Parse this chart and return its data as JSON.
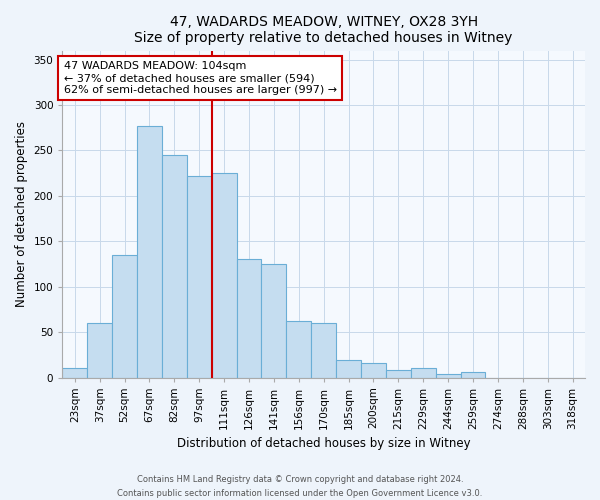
{
  "title": "47, WADARDS MEADOW, WITNEY, OX28 3YH",
  "subtitle": "Size of property relative to detached houses in Witney",
  "xlabel": "Distribution of detached houses by size in Witney",
  "ylabel": "Number of detached properties",
  "bar_labels": [
    "23sqm",
    "37sqm",
    "52sqm",
    "67sqm",
    "82sqm",
    "97sqm",
    "111sqm",
    "126sqm",
    "141sqm",
    "156sqm",
    "170sqm",
    "185sqm",
    "200sqm",
    "215sqm",
    "229sqm",
    "244sqm",
    "259sqm",
    "274sqm",
    "288sqm",
    "303sqm",
    "318sqm"
  ],
  "bar_values": [
    11,
    60,
    135,
    277,
    245,
    222,
    225,
    130,
    125,
    62,
    60,
    19,
    16,
    8,
    10,
    4,
    6,
    0,
    0,
    0,
    0
  ],
  "bar_color": "#c5ddf0",
  "bar_edge_color": "#6aaed6",
  "highlight_color": "#cc0000",
  "annotation_line1": "47 WADARDS MEADOW: 104sqm",
  "annotation_line2": "← 37% of detached houses are smaller (594)",
  "annotation_line3": "62% of semi-detached houses are larger (997) →",
  "annotation_box_color": "#ffffff",
  "annotation_box_edge": "#cc0000",
  "ylim": [
    0,
    360
  ],
  "yticks": [
    0,
    50,
    100,
    150,
    200,
    250,
    300,
    350
  ],
  "footer_line1": "Contains HM Land Registry data © Crown copyright and database right 2024.",
  "footer_line2": "Contains public sector information licensed under the Open Government Licence v3.0.",
  "bg_color": "#eef4fb",
  "plot_bg_color": "#f5f9fe",
  "grid_color": "#c8d8ea"
}
